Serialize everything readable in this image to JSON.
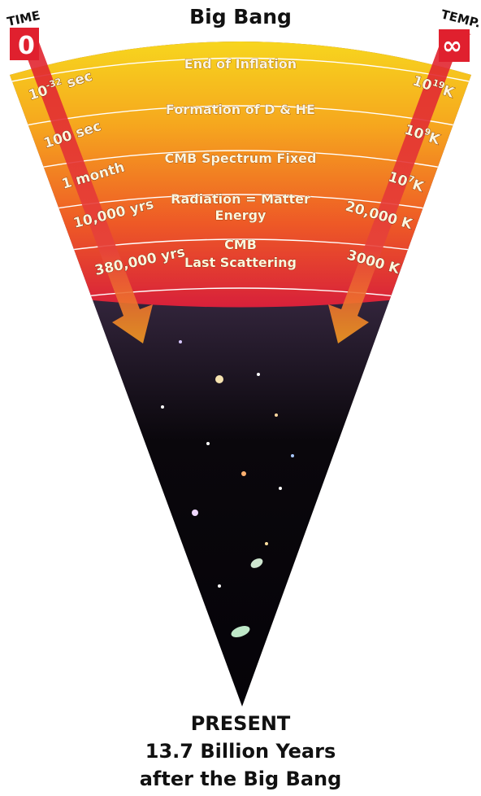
{
  "title": "Big Bang",
  "time_axis": {
    "label": "TIME",
    "start": "0"
  },
  "temp_axis": {
    "label": "TEMP.",
    "start": "∞"
  },
  "epochs": [
    {
      "name": "End of Inflation",
      "name2": "",
      "time": "10",
      "time_exp": "-32",
      "time_unit": " sec",
      "temp": "10",
      "temp_exp": "19",
      "temp_unit": "K"
    },
    {
      "name": "Formation of D & HE",
      "name2": "",
      "time": "100 sec",
      "time_exp": "",
      "time_unit": "",
      "temp": "10",
      "temp_exp": "9",
      "temp_unit": "K"
    },
    {
      "name": "CMB Spectrum Fixed",
      "name2": "",
      "time": "1 month",
      "time_exp": "",
      "time_unit": "",
      "temp": "10",
      "temp_exp": "7",
      "temp_unit": "K"
    },
    {
      "name": "Radiation = Matter",
      "name2": "Energy",
      "time": "10,000 yrs",
      "time_exp": "",
      "time_unit": "",
      "temp": "20,000 K",
      "temp_exp": "",
      "temp_unit": ""
    },
    {
      "name": "CMB",
      "name2": "Last Scattering",
      "time": "380,000 yrs",
      "time_exp": "",
      "time_unit": "",
      "temp": "3000 K",
      "temp_exp": "",
      "temp_unit": ""
    }
  ],
  "present": {
    "line1": "PRESENT",
    "line2": "13.7 Billion Years",
    "line3": "after the Big Bang"
  },
  "colors": {
    "band_top": "#f7df1e",
    "band_mid": "#f08a1c",
    "band_bottom": "#d8203a",
    "arrow": "#f5a21c",
    "space_top": "#6a5a7a",
    "space_bottom": "#050308"
  }
}
